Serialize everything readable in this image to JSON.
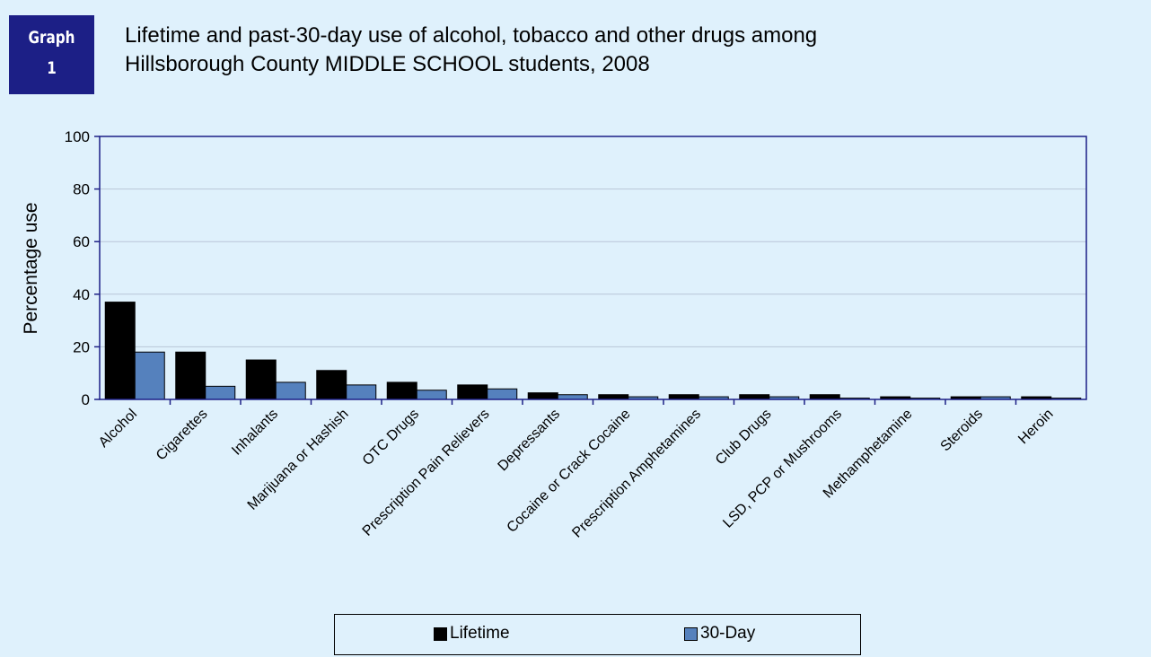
{
  "badge": {
    "line1": "Graph",
    "line2": "1"
  },
  "title_line1": "Lifetime and past-30-day use of alcohol, tobacco and other drugs among",
  "title_line2": "Hillsborough County MIDDLE SCHOOL students, 2008",
  "colors": {
    "lifetime": "#000000",
    "thirty_day": "#5581bd",
    "axis": "#1c1f86",
    "background": "#dff1fc",
    "badge": "#1c1f86"
  },
  "chart_data": {
    "type": "bar",
    "ylabel": "Percentage use",
    "xlabel": "",
    "ylim": [
      0,
      100
    ],
    "yticks": [
      0,
      20,
      40,
      60,
      80,
      100
    ],
    "grid": true,
    "legend_position": "bottom",
    "categories": [
      "Alcohol",
      "Cigarettes",
      "Inhalants",
      "Marijuana or Hashish",
      "OTC Drugs",
      "Prescription Pain Relievers",
      "Depressants",
      "Cocaine or Crack Cocaine",
      "Prescription Amphetamines",
      "Club Drugs",
      "LSD, PCP or Mushrooms",
      "Methamphetamine",
      "Steroids",
      "Heroin"
    ],
    "series": [
      {
        "name": "Lifetime",
        "values": [
          37,
          18,
          15,
          11,
          6.5,
          5.5,
          2.5,
          1.8,
          1.8,
          1.8,
          1.8,
          1,
          1,
          1
        ]
      },
      {
        "name": "30-Day",
        "values": [
          18,
          5,
          6.5,
          5.5,
          3.5,
          4,
          1.8,
          1,
          1,
          1,
          0.5,
          0.5,
          1,
          0.5
        ]
      }
    ]
  }
}
